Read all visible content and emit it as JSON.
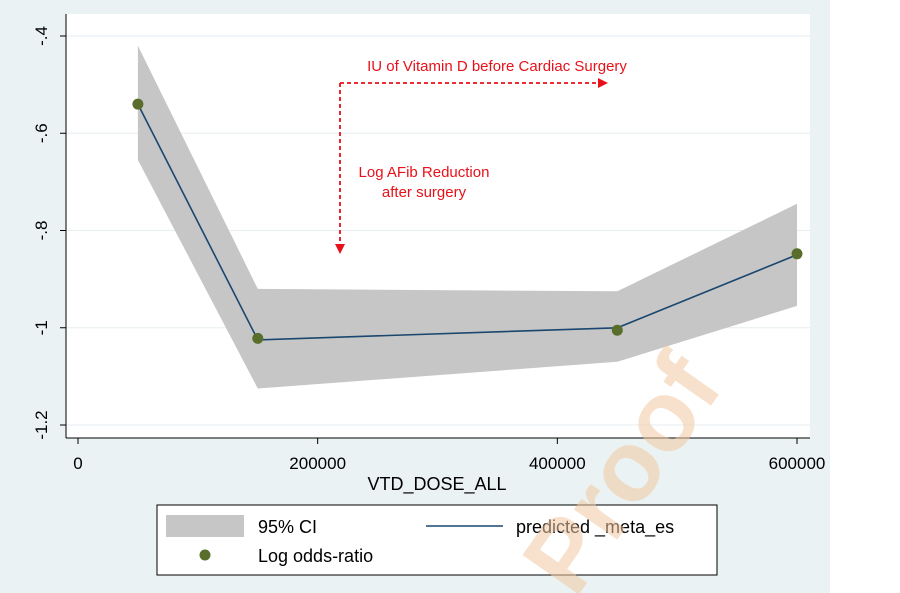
{
  "colors": {
    "outer_bg": "#eaf2f3",
    "plot_bg": "#ffffff",
    "grid": "#e6eef0",
    "ci_band": "#c6c6c6",
    "line": "#1a476f",
    "marker": "#5a6e2c",
    "annotation": "#e8111a",
    "watermark": "#f2c9a3"
  },
  "chart_data": {
    "type": "line",
    "title": "",
    "xlabel": "VTD_DOSE_ALL",
    "ylabel": "",
    "xlim": [
      0,
      600000
    ],
    "ylim": [
      -1.2,
      -0.4
    ],
    "x_ticks": [
      0,
      200000,
      400000,
      600000
    ],
    "x_tick_labels": [
      "0",
      "200000",
      "400000",
      "600000"
    ],
    "y_ticks": [
      -0.4,
      -0.6,
      -0.8,
      -1,
      -1.2
    ],
    "y_tick_labels": [
      "-.4",
      "-.6",
      "-.8",
      "-1",
      "-1.2"
    ],
    "grid": true,
    "series": [
      {
        "name": "95% CI",
        "kind": "band",
        "x": [
          50000,
          150000,
          450000,
          600000
        ],
        "lower": [
          -0.655,
          -1.125,
          -1.07,
          -0.955
        ],
        "upper": [
          -0.42,
          -0.92,
          -0.925,
          -0.745
        ]
      },
      {
        "name": "predicted _meta_es",
        "kind": "line",
        "x": [
          50000,
          150000,
          450000,
          600000
        ],
        "y": [
          -0.54,
          -1.025,
          -1.0,
          -0.85
        ]
      },
      {
        "name": "Log odds-ratio",
        "kind": "scatter",
        "x": [
          50000,
          150000,
          450000,
          600000
        ],
        "y": [
          -0.54,
          -1.022,
          -1.005,
          -0.848
        ]
      }
    ],
    "annotations": {
      "horizontal_label": "IU of Vitamin D before Cardiac Surgery",
      "vertical_label_line1": "Log AFib Reduction",
      "vertical_label_line2": "after surgery"
    },
    "legend": {
      "position": "bottom",
      "ci_label": "95% CI",
      "line_label": "predicted _meta_es",
      "scatter_label": "Log odds-ratio"
    }
  },
  "watermark": "Proof"
}
